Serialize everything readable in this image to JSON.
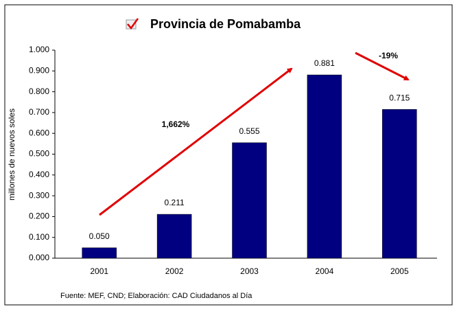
{
  "chart_data": {
    "type": "bar",
    "title": "Provincia de Pomabamba",
    "y_label": "millones de nuevos soles",
    "categories": [
      "2001",
      "2002",
      "2003",
      "2004",
      "2005"
    ],
    "values": [
      0.05,
      0.211,
      0.555,
      0.881,
      0.715
    ],
    "value_labels": [
      "0.050",
      "0.211",
      "0.555",
      "0.881",
      "0.715"
    ],
    "color": "#000080",
    "ylim": [
      0,
      1
    ],
    "yticks": [
      {
        "value": 0,
        "label": "0.000"
      },
      {
        "value": 0.1,
        "label": "0.100"
      },
      {
        "value": 0.2,
        "label": "0.200"
      },
      {
        "value": 0.3,
        "label": "0.300"
      },
      {
        "value": 0.4,
        "label": "0.400"
      },
      {
        "value": 0.5,
        "label": "0.500"
      },
      {
        "value": 0.6,
        "label": "0.600"
      },
      {
        "value": 0.7,
        "label": "0.700"
      },
      {
        "value": 0.8,
        "label": "0.800"
      },
      {
        "value": 0.9,
        "label": "0.900"
      },
      {
        "value": 1,
        "label": "1.000"
      }
    ],
    "annotations": [
      "1,662%",
      "-19%"
    ],
    "source": "Fuente: MEF, CND; Elaboración: CAD Ciudadanos al Día"
  }
}
